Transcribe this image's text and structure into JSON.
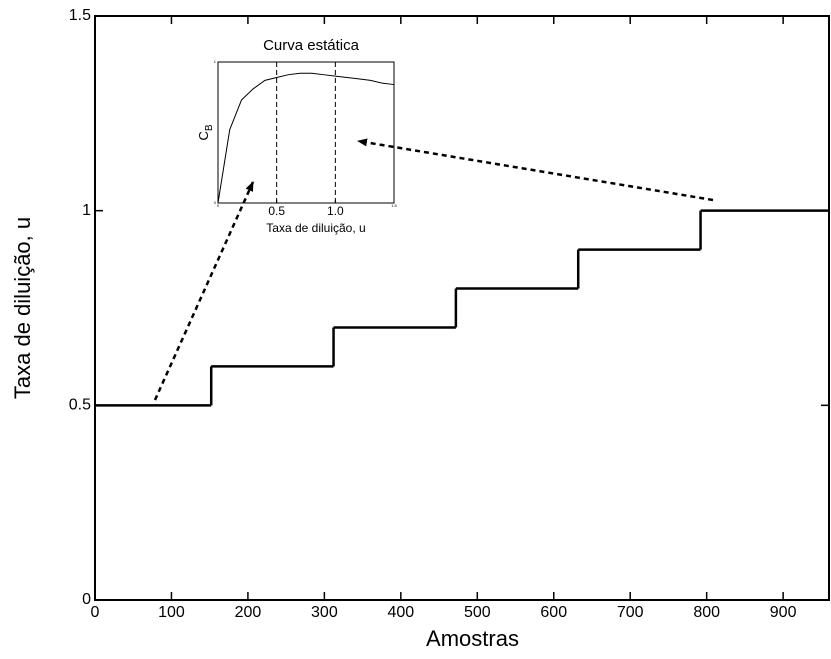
{
  "chart_data": [
    {
      "type": "step",
      "xlabel": "Amostras",
      "ylabel": "Taxa de diluição, u",
      "x": [
        0,
        152,
        312,
        472,
        632,
        792
      ],
      "values": [
        0.5,
        0.6,
        0.7,
        0.8,
        0.9,
        1.0
      ],
      "color": "#000000",
      "xlim": [
        0,
        960
      ],
      "ylim": [
        0,
        1.5
      ],
      "xticks": [
        0,
        100,
        200,
        300,
        400,
        500,
        600,
        700,
        800,
        900
      ],
      "yticks": [
        0,
        0.5,
        1,
        1.5
      ]
    },
    {
      "type": "line",
      "title": "Curva estática",
      "xlabel": "Taxa de diluição, u",
      "ylabel": "C",
      "ylabel_sub": "B",
      "x": [
        0,
        0.1,
        0.2,
        0.3,
        0.4,
        0.5,
        0.6,
        0.7,
        0.8,
        0.9,
        1.0,
        1.1,
        1.2,
        1.3,
        1.4,
        1.5
      ],
      "values": [
        0,
        0.52,
        0.73,
        0.81,
        0.87,
        0.89,
        0.91,
        0.92,
        0.92,
        0.91,
        0.9,
        0.89,
        0.88,
        0.87,
        0.85,
        0.84
      ],
      "color": "#000000",
      "xlim": [
        0,
        1.5
      ],
      "ylim": [
        0,
        1
      ],
      "xticks": [
        0,
        0.5,
        {
          "value": 1,
          "label": "1.0"
        },
        1.5
      ],
      "yticks": [
        0,
        1
      ],
      "vlines": [
        0.5,
        1
      ]
    }
  ]
}
